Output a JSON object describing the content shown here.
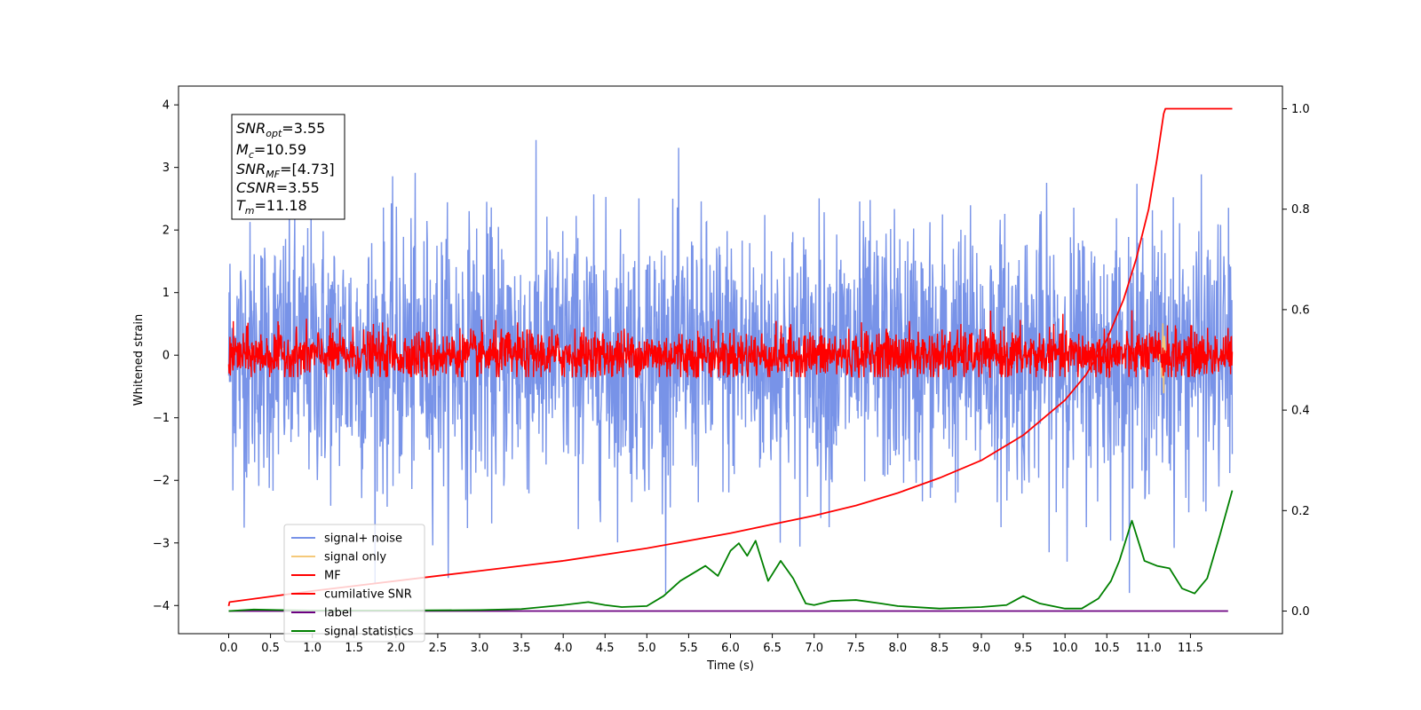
{
  "chart_data": {
    "type": "line",
    "xlabel": "Time (s)",
    "ylabel": "Whitened strain",
    "xlim": [
      -0.6,
      12.6
    ],
    "ylim_left": [
      -4.45,
      4.3
    ],
    "ylim_right": [
      -0.045,
      1.045
    ],
    "x_ticks": [
      "0.0",
      "0.5",
      "1.0",
      "1.5",
      "2.0",
      "2.5",
      "3.0",
      "3.5",
      "4.0",
      "4.5",
      "5.0",
      "5.5",
      "6.0",
      "6.5",
      "7.0",
      "7.5",
      "8.0",
      "8.5",
      "9.0",
      "9.5",
      "10.0",
      "10.5",
      "11.0",
      "11.5"
    ],
    "y_ticks_left": [
      "4",
      "3",
      "2",
      "1",
      "0",
      "−1",
      "−2",
      "−3",
      "−4"
    ],
    "y_ticks_right": [
      "1.0",
      "0.8",
      "0.6",
      "0.4",
      "0.2",
      "0.0"
    ],
    "annotation": {
      "snr_opt": {
        "base": "SNR",
        "sub": "opt",
        "value": "=3.55"
      },
      "mc": {
        "base": "M",
        "sub": "c",
        "value": "=10.59"
      },
      "snr_mf": {
        "base": "SNR",
        "sub": "MF",
        "value": "=[4.73]"
      },
      "csnr": {
        "base": "CSNR",
        "value": "=3.55"
      },
      "tm": {
        "base": "T",
        "sub": "m",
        "value": "=11.18"
      }
    },
    "legend": {
      "placement": "lower-left",
      "entries": [
        {
          "label": "signal+ noise",
          "color": "#7893e8"
        },
        {
          "label": "signal only",
          "color": "#f5c97a"
        },
        {
          "label": "MF",
          "color": "#ff0000"
        },
        {
          "label": "cumilative SNR",
          "color": "#ff0000"
        },
        {
          "label": "label",
          "color": "#6b0080"
        },
        {
          "label": "signal statistics",
          "color": "#008000"
        }
      ]
    },
    "series": [
      {
        "name": "signal+ noise",
        "axis": "left",
        "description_kind": "noise",
        "x_range": [
          0.0,
          12.0
        ],
        "spread": 1.05,
        "clip": [
          -3.8,
          3.9
        ],
        "color": "#7893e8"
      },
      {
        "name": "MF",
        "axis": "left",
        "description_kind": "noise",
        "x_range": [
          0.0,
          12.0
        ],
        "spread": 0.2,
        "clip": [
          -0.35,
          1.0
        ],
        "color": "#ff0000"
      },
      {
        "name": "signal only",
        "axis": "left",
        "color": "#f5c97a",
        "x": [
          11.05,
          11.1,
          11.12,
          11.14,
          11.16,
          11.17,
          11.18,
          11.19,
          11.2
        ],
        "y": [
          0.0,
          0.05,
          -0.1,
          0.2,
          -0.35,
          0.5,
          -0.6,
          0.3,
          0.0
        ]
      },
      {
        "name": "cumilative SNR",
        "axis": "right",
        "color": "#ff0000",
        "x": [
          0.0,
          0.01,
          1.0,
          2.0,
          3.0,
          4.0,
          5.0,
          6.0,
          7.0,
          7.5,
          8.0,
          8.5,
          9.0,
          9.5,
          10.0,
          10.25,
          10.5,
          10.7,
          10.85,
          11.0,
          11.1,
          11.18,
          11.2,
          12.0
        ],
        "y": [
          0.01,
          0.018,
          0.04,
          0.06,
          0.08,
          0.1,
          0.125,
          0.155,
          0.19,
          0.21,
          0.235,
          0.265,
          0.3,
          0.35,
          0.42,
          0.47,
          0.54,
          0.62,
          0.7,
          0.8,
          0.9,
          0.99,
          1.0,
          1.0
        ]
      },
      {
        "name": "label",
        "axis": "right",
        "color": "#6b0080",
        "x": [
          0.0,
          11.95
        ],
        "y": [
          0.0,
          0.0
        ]
      },
      {
        "name": "signal statistics",
        "axis": "right",
        "color": "#008000",
        "x": [
          0.0,
          0.3,
          0.6,
          1.0,
          2.0,
          3.0,
          3.5,
          4.0,
          4.3,
          4.5,
          4.7,
          5.0,
          5.2,
          5.4,
          5.55,
          5.7,
          5.85,
          6.0,
          6.1,
          6.2,
          6.3,
          6.45,
          6.6,
          6.75,
          6.9,
          7.0,
          7.2,
          7.5,
          7.8,
          8.0,
          8.5,
          9.0,
          9.3,
          9.5,
          9.7,
          10.0,
          10.2,
          10.4,
          10.55,
          10.65,
          10.8,
          10.95,
          11.1,
          11.25,
          11.4,
          11.55,
          11.7,
          11.85,
          12.0
        ],
        "y": [
          0.0,
          0.003,
          0.002,
          0.001,
          0.001,
          0.002,
          0.004,
          0.012,
          0.018,
          0.012,
          0.008,
          0.01,
          0.03,
          0.06,
          0.075,
          0.09,
          0.07,
          0.12,
          0.135,
          0.11,
          0.14,
          0.06,
          0.1,
          0.065,
          0.015,
          0.012,
          0.02,
          0.022,
          0.015,
          0.01,
          0.005,
          0.008,
          0.012,
          0.03,
          0.015,
          0.005,
          0.005,
          0.025,
          0.06,
          0.1,
          0.18,
          0.1,
          0.09,
          0.085,
          0.045,
          0.035,
          0.065,
          0.15,
          0.24
        ]
      }
    ]
  }
}
